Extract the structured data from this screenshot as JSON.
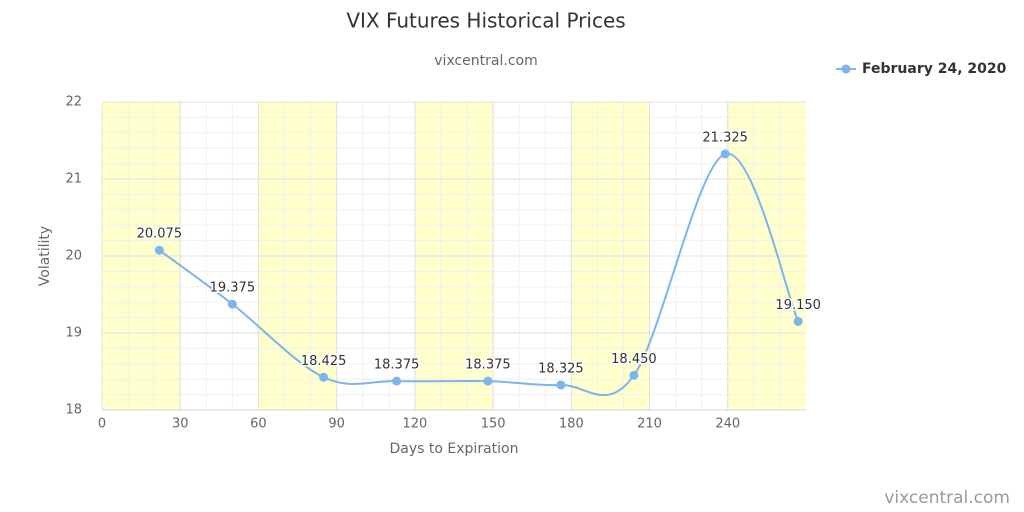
{
  "chart_data": {
    "type": "line",
    "title": "VIX Futures Historical Prices",
    "subtitle": "vixcentral.com",
    "credit": "vixcentral.com",
    "x_label": "Days to Expiration",
    "y_label": "Volatility",
    "x": [
      22,
      50,
      85,
      113,
      148,
      176,
      204,
      239,
      267
    ],
    "series": [
      {
        "name": "February 24, 2020",
        "color": "#7cb5ec",
        "values": [
          20.075,
          19.375,
          18.425,
          18.375,
          18.375,
          18.325,
          18.45,
          21.325,
          19.15
        ],
        "value_labels": [
          "20.075",
          "19.375",
          "18.425",
          "18.375",
          "18.375",
          "18.325",
          "18.450",
          "21.325",
          "19.150"
        ]
      }
    ],
    "xlim": [
      0,
      270
    ],
    "xticks": [
      0,
      30,
      60,
      90,
      120,
      150,
      180,
      210,
      240
    ],
    "ylim": [
      18,
      22
    ],
    "yticks": [
      18,
      19,
      20,
      21,
      22
    ],
    "grid": true,
    "minor_grid": true,
    "smooth": true,
    "legend": "top-right",
    "bands": [
      [
        0,
        30
      ],
      [
        60,
        90
      ],
      [
        120,
        150
      ],
      [
        180,
        210
      ],
      [
        240,
        270
      ]
    ],
    "band_color": "#ffffcc"
  }
}
